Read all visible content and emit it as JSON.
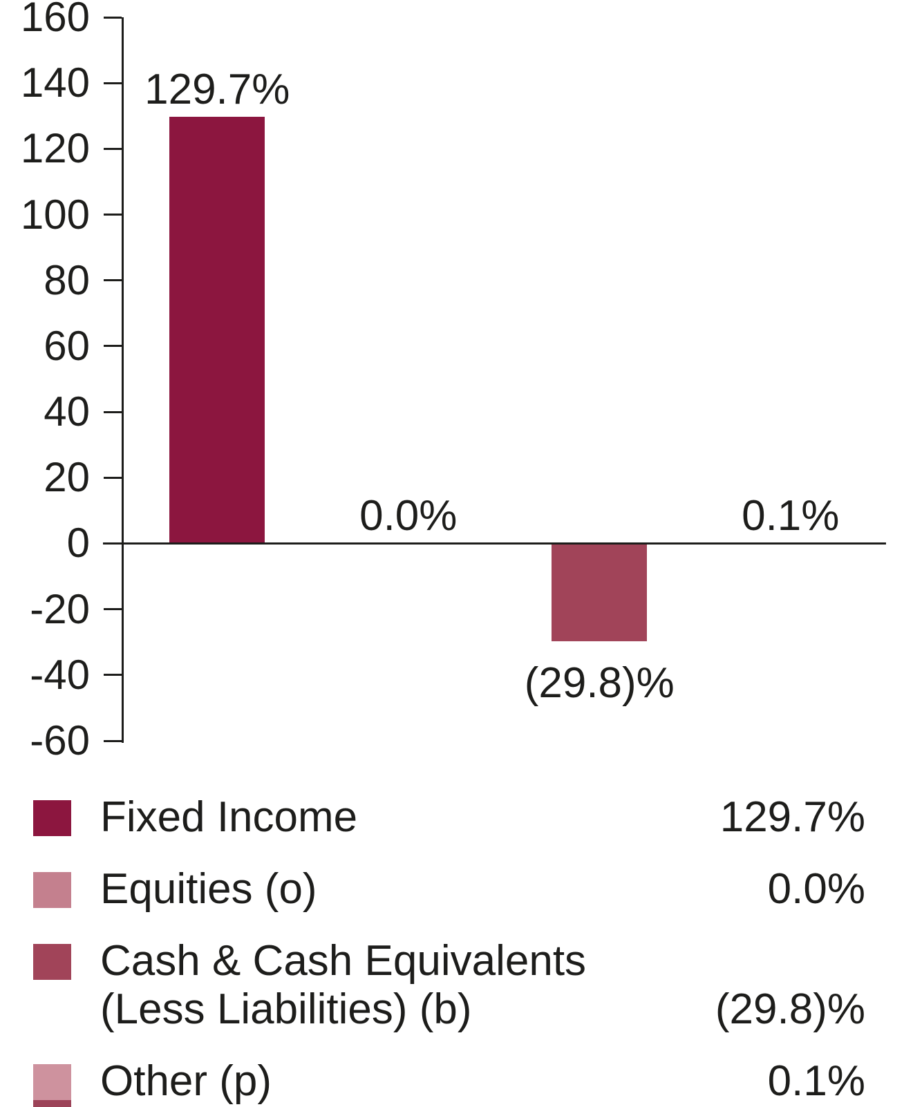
{
  "chart_data": {
    "type": "bar",
    "title": "",
    "xlabel": "",
    "ylabel": "",
    "categories": [
      "Fixed Income",
      "Equities (o)",
      "Cash & Cash Equivalents (Less Liabilities) (b)",
      "Other (p)"
    ],
    "values": [
      129.7,
      0.0,
      -29.8,
      0.1
    ],
    "bar_labels": [
      "129.7%",
      "0.0%",
      "(29.8)%",
      "0.1%"
    ],
    "bar_colors": [
      "#8C163F",
      "#C4808E",
      "#A14459",
      "#CE929E"
    ],
    "ylim": [
      -60,
      160
    ],
    "yticks": [
      160,
      140,
      120,
      100,
      80,
      60,
      40,
      20,
      0,
      -20,
      -40,
      -60
    ],
    "grid": false,
    "legend_position": "bottom",
    "axis_color": "#1d1d1b",
    "text_color": "#1d1d1b",
    "legend": [
      {
        "lines": [
          "Fixed Income"
        ],
        "value": "129.7%",
        "color": "#8C163F"
      },
      {
        "lines": [
          "Equities (o)"
        ],
        "value": "0.0%",
        "color": "#C4808E"
      },
      {
        "lines": [
          "Cash & Cash Equivalents",
          "(Less Liabilities) (b)"
        ],
        "value": "(29.8)%",
        "color": "#A14459"
      },
      {
        "lines": [
          "Other (p)"
        ],
        "value": "0.1%",
        "color": "#CE929E"
      }
    ],
    "legend_partial_row": {
      "color": "#9C4358"
    }
  }
}
